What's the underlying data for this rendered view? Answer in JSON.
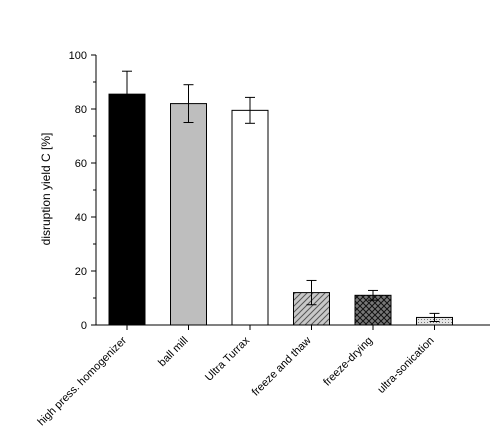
{
  "chart_data": {
    "type": "bar",
    "title": "",
    "xlabel": "",
    "ylabel": "disruption yield C  [%]",
    "ylim": [
      0,
      100
    ],
    "yticks": [
      0,
      20,
      40,
      60,
      80,
      100
    ],
    "grid": false,
    "categories": [
      "high press. homogenizer",
      "ball mill",
      "Ultra Turrax",
      "freeze and thaw",
      "freeze-drying",
      "ultra-sonication"
    ],
    "values": [
      85.5,
      82,
      79.5,
      12,
      11,
      2.8
    ],
    "errors": [
      8.5,
      7,
      4.8,
      4.5,
      1.8,
      1.5
    ],
    "bar_fills": [
      "solid-black",
      "solid-gray",
      "white",
      "diagonal-hatch",
      "cross-hatch",
      "dotted"
    ],
    "colors": {
      "black": "#000000",
      "gray": "#bebebe",
      "white": "#ffffff",
      "hatch_bg": "#c8c8c8",
      "hatch_line": "#555555",
      "cross_bg": "#777777",
      "dot_bg": "#e6e6e6",
      "dot": "#777777"
    }
  }
}
